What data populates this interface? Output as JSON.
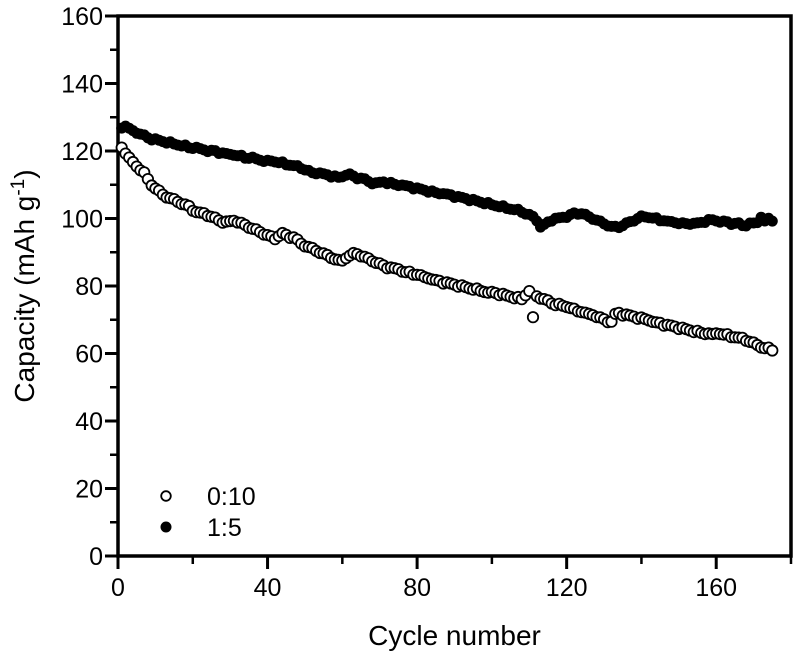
{
  "figure": {
    "background": "#ffffff",
    "foreground": "#000000"
  },
  "chart_data": {
    "type": "scatter",
    "title": "",
    "xlabel": "Cycle number",
    "ylabel": "Capacity (mAh g⁻¹)",
    "ylabel_parts": {
      "pre": "Capacity (mAh g",
      "sup": "-1",
      "post": ")"
    },
    "xlim": [
      0,
      180
    ],
    "ylim": [
      0,
      160
    ],
    "x_major_ticks": [
      0,
      40,
      80,
      120,
      160
    ],
    "x_minor_ticks": [
      20,
      60,
      100,
      140,
      180
    ],
    "y_major_ticks": [
      0,
      20,
      40,
      60,
      80,
      100,
      120,
      140,
      160
    ],
    "y_minor_ticks": [
      10,
      30,
      50,
      70,
      90,
      110,
      130,
      150
    ],
    "grid": "off",
    "frame": "full-box",
    "legend": {
      "position": "lower-left",
      "entries": [
        {
          "label": "0:10",
          "marker": "open-circle"
        },
        {
          "label": "1:5",
          "marker": "filled-circle"
        }
      ]
    },
    "x_first_cycle": 1,
    "x_step": 1,
    "series": [
      {
        "name": "0:10",
        "marker": "open-circle",
        "stroke": "#000000",
        "fill": "#ffffff",
        "values": [
          121,
          119.5,
          118,
          116.5,
          115.5,
          114.5,
          113.5,
          111.5,
          110,
          109,
          108,
          107,
          106.5,
          106,
          105.5,
          105,
          104.5,
          104,
          103.5,
          102.5,
          102,
          101.5,
          101.5,
          101,
          100.5,
          100,
          99.5,
          99,
          99,
          99,
          99.5,
          99,
          98.5,
          98,
          97.5,
          97,
          96.5,
          96,
          95.5,
          95,
          94.5,
          94,
          95,
          95.5,
          95,
          94.5,
          94.5,
          93.5,
          92.5,
          92,
          91.5,
          91,
          90.5,
          90,
          89.5,
          89,
          88.5,
          88,
          87.5,
          87.5,
          88.5,
          89,
          89.5,
          89.5,
          89,
          88.5,
          88,
          87.5,
          87,
          86.5,
          86,
          85.5,
          85.5,
          85,
          85,
          84.5,
          84,
          84,
          83.5,
          83.5,
          83,
          82.5,
          82.5,
          82,
          81.5,
          81.5,
          81,
          81,
          80.5,
          80.5,
          80,
          80,
          79.5,
          79.5,
          79,
          79,
          78.5,
          78.5,
          78,
          78,
          78,
          77.5,
          77.5,
          77,
          77,
          76.5,
          76.5,
          76,
          77.5,
          78.5,
          70.5,
          77,
          76.5,
          76,
          75.5,
          75,
          74.5,
          74.5,
          74,
          74,
          73.5,
          73,
          72.5,
          72.5,
          72,
          71.5,
          71.5,
          71,
          70.5,
          70,
          69.5,
          69.5,
          71.5,
          72,
          71.5,
          71.5,
          71,
          71,
          70.5,
          70.5,
          70,
          70,
          69.5,
          69,
          69,
          68.5,
          68.5,
          68,
          68,
          67.5,
          67.5,
          67,
          67,
          66.5,
          66.5,
          66,
          66,
          66,
          65.5,
          66,
          66,
          65.5,
          65.5,
          65,
          65,
          64.5,
          64.5,
          64,
          63.5,
          63,
          62.5,
          62,
          61.5,
          61.5,
          61
        ]
      },
      {
        "name": "1:5",
        "marker": "filled-circle",
        "stroke": "#000000",
        "fill": "#000000",
        "values": [
          127,
          127.5,
          126.5,
          126,
          125.5,
          125,
          124.5,
          124,
          123.5,
          123.5,
          123,
          123,
          122.5,
          122.5,
          122,
          122,
          121.5,
          121.5,
          121,
          121,
          121,
          120.5,
          120.5,
          120,
          120,
          120,
          119.5,
          119.5,
          119,
          119,
          119,
          118.5,
          118.5,
          118,
          118,
          118,
          117.5,
          117.5,
          117,
          117,
          117,
          117,
          116.5,
          116.5,
          116,
          116,
          115.5,
          115.5,
          115,
          114.5,
          114,
          113.5,
          113.5,
          113.5,
          113,
          113,
          112.5,
          112.5,
          112,
          112.5,
          113,
          113,
          112.5,
          112,
          112,
          111.5,
          111,
          110.5,
          110.5,
          110.5,
          111,
          110.5,
          110.5,
          110,
          110,
          110,
          109.5,
          109.5,
          109,
          109,
          108.5,
          108.5,
          108,
          108,
          107.5,
          107.5,
          107.5,
          107,
          107,
          106.5,
          106.5,
          106,
          106,
          105.5,
          105.5,
          105,
          105,
          104.5,
          104.5,
          104,
          104,
          103.5,
          103.5,
          103,
          103,
          102.5,
          102.5,
          102,
          101.5,
          101,
          100.5,
          99.5,
          97.5,
          98,
          99,
          99.5,
          100,
          100,
          100.5,
          100.5,
          101,
          101.5,
          101.5,
          101.5,
          101,
          100.5,
          100,
          99.5,
          99,
          98.5,
          98,
          97.5,
          97.5,
          97.5,
          98,
          98.5,
          99,
          99.5,
          100,
          100.5,
          100.5,
          100.5,
          100,
          100,
          99.5,
          99.5,
          99,
          99,
          99,
          98.5,
          98.5,
          98.5,
          98.5,
          98.5,
          98.5,
          99,
          99,
          99.5,
          99.5,
          99.5,
          99,
          99,
          99,
          98.5,
          98.5,
          98.5,
          98,
          98,
          98.5,
          98.5,
          99,
          100.5,
          99,
          100,
          99.5
        ]
      }
    ]
  }
}
